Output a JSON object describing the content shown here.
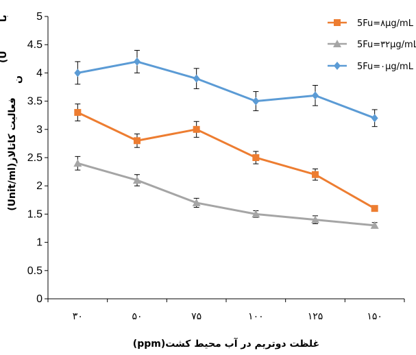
{
  "chart_data": {
    "type": "line",
    "xlabel": "غلظت دوتریم در آب محیط کشت(ppm)",
    "ylabel": "فعالیت کاتالاز(Unit/ml)",
    "ylabel_cropped_fragments": [
      "با",
      "(U",
      "ن"
    ],
    "categories": [
      "۳۰",
      "۵۰",
      "۷۵",
      "۱۰۰",
      "۱۲۵",
      "۱۵۰"
    ],
    "ylim": [
      0,
      5
    ],
    "yticks": [
      "0",
      "0.5",
      "1",
      "1.5",
      "2",
      "2.5",
      "3",
      "3.5",
      "4",
      "4.5",
      "5"
    ],
    "grid": false,
    "legend_position": "top-right",
    "series": [
      {
        "name": "5Fu=۸µg/mL",
        "marker": "square",
        "color": "#ED7D31",
        "values": [
          3.3,
          2.8,
          3.0,
          2.5,
          2.2,
          1.6
        ],
        "errors": [
          0.15,
          0.12,
          0.14,
          0.11,
          0.1,
          0.0
        ]
      },
      {
        "name": "5Fu=۳۲µg/mL",
        "marker": "triangle",
        "color": "#A5A5A5",
        "values": [
          2.4,
          2.1,
          1.7,
          1.5,
          1.4,
          1.3
        ],
        "errors": [
          0.12,
          0.1,
          0.08,
          0.06,
          0.07,
          0.05
        ]
      },
      {
        "name": "5Fu=۰µg/mL",
        "marker": "diamond",
        "color": "#5B9BD5",
        "values": [
          4.0,
          4.2,
          3.9,
          3.5,
          3.6,
          3.2
        ],
        "errors": [
          0.2,
          0.2,
          0.18,
          0.17,
          0.18,
          0.15
        ]
      }
    ]
  }
}
